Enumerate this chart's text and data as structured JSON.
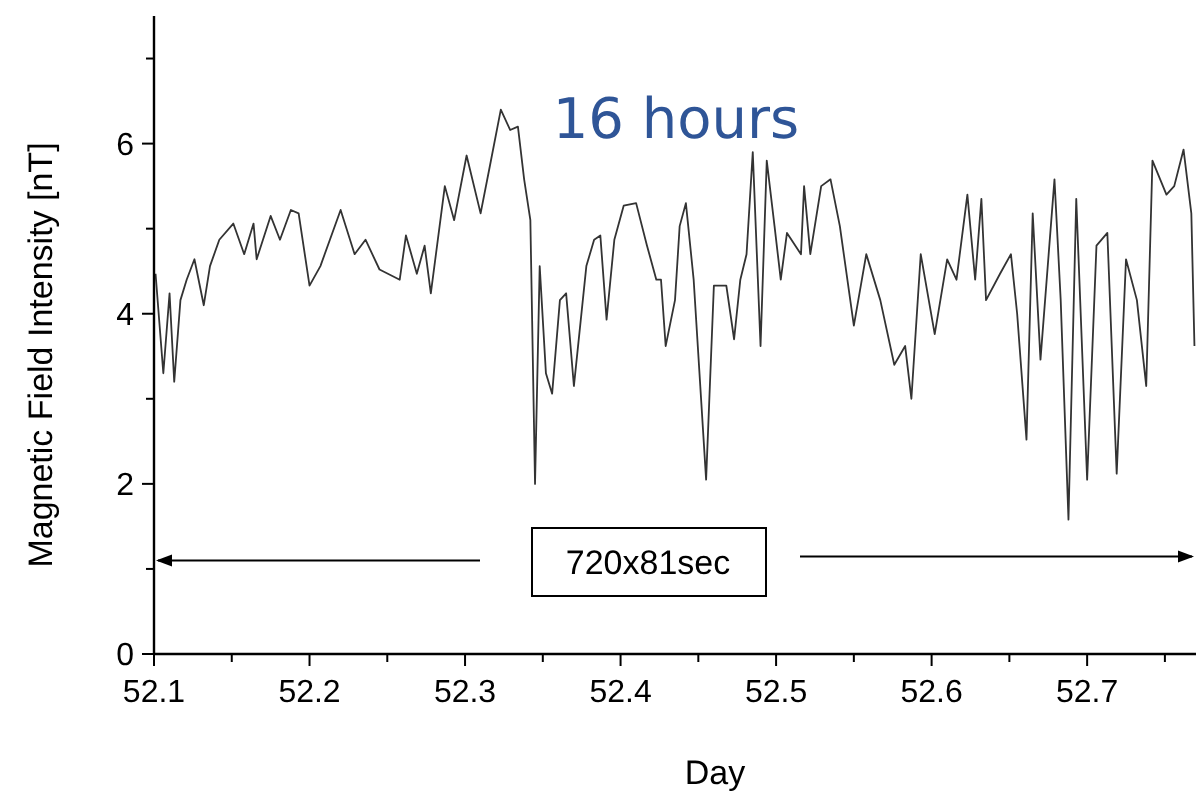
{
  "chart_data": {
    "type": "line",
    "title": "16 hours",
    "xlabel": "Day",
    "ylabel": "Magnetic Field Intensity [nT]",
    "annotations": [
      "720x81sec"
    ],
    "xlim": [
      52.1,
      52.77
    ],
    "ylim": [
      0,
      7.5
    ],
    "xticks": [
      52.1,
      {
        "value": 52.15,
        "label": null
      },
      52.2,
      {
        "value": 52.25,
        "label": null
      },
      52.3,
      {
        "value": 52.35,
        "label": null
      },
      52.4,
      {
        "value": 52.45,
        "label": null
      },
      52.5,
      {
        "value": 52.55,
        "label": null
      },
      52.6,
      {
        "value": 52.65,
        "label": null
      },
      52.7,
      {
        "value": 52.75,
        "label": null
      }
    ],
    "yticks": [
      0,
      {
        "value": 1,
        "label": null
      },
      2,
      {
        "value": 3,
        "label": null
      },
      4,
      {
        "value": 5,
        "label": null
      },
      6,
      {
        "value": 7,
        "label": null
      }
    ],
    "grid": false,
    "series": [
      {
        "color": "#333333",
        "x": [
          52.101,
          52.106,
          52.11,
          52.113,
          52.117,
          52.121,
          52.126,
          52.132,
          52.136,
          52.142,
          52.151,
          52.158,
          52.164,
          52.166,
          52.175,
          52.181,
          52.188,
          52.193,
          52.2,
          52.207,
          52.22,
          52.229,
          52.236,
          52.245,
          52.258,
          52.262,
          52.269,
          52.274,
          52.278,
          52.287,
          52.293,
          52.301,
          52.31,
          52.316,
          52.323,
          52.329,
          52.334,
          52.338,
          52.342,
          52.345,
          52.348,
          52.352,
          52.356,
          52.361,
          52.365,
          52.37,
          52.378,
          52.383,
          52.387,
          52.391,
          52.396,
          52.402,
          52.41,
          52.417,
          52.423,
          52.426,
          52.429,
          52.435,
          52.438,
          52.442,
          52.447,
          52.455,
          52.46,
          52.468,
          52.473,
          52.477,
          52.481,
          52.485,
          52.49,
          52.494,
          52.499,
          52.503,
          52.507,
          52.516,
          52.518,
          52.522,
          52.529,
          52.535,
          52.541,
          52.55,
          52.558,
          52.567,
          52.576,
          52.583,
          52.587,
          52.593,
          52.602,
          52.61,
          52.616,
          52.623,
          52.628,
          52.632,
          52.635,
          52.644,
          52.651,
          52.655,
          52.661,
          52.665,
          52.67,
          52.679,
          52.683,
          52.688,
          52.693,
          52.7,
          52.706,
          52.713,
          52.719,
          52.725,
          52.732,
          52.738,
          52.742,
          52.751,
          52.756,
          52.762,
          52.767,
          52.769
        ],
        "values": [
          4.47,
          3.3,
          4.24,
          3.2,
          4.16,
          4.4,
          4.64,
          4.1,
          4.56,
          4.87,
          5.06,
          4.7,
          5.06,
          4.64,
          5.15,
          4.87,
          5.22,
          5.18,
          4.33,
          4.56,
          5.22,
          4.7,
          4.87,
          4.52,
          4.4,
          4.92,
          4.47,
          4.8,
          4.24,
          5.5,
          5.1,
          5.86,
          5.18,
          5.74,
          6.4,
          6.16,
          6.2,
          5.58,
          5.1,
          2.0,
          4.56,
          3.3,
          3.06,
          4.16,
          4.24,
          3.15,
          4.56,
          4.87,
          4.92,
          3.93,
          4.87,
          5.27,
          5.3,
          4.8,
          4.4,
          4.4,
          3.62,
          4.16,
          5.03,
          5.3,
          4.4,
          2.05,
          4.33,
          4.33,
          3.7,
          4.4,
          4.7,
          5.9,
          3.62,
          5.8,
          5.03,
          4.4,
          4.95,
          4.7,
          5.5,
          4.7,
          5.5,
          5.58,
          5.03,
          3.86,
          4.7,
          4.16,
          3.4,
          3.62,
          3.0,
          4.7,
          3.76,
          4.64,
          4.4,
          5.4,
          4.4,
          5.35,
          4.16,
          4.47,
          4.7,
          4.0,
          2.52,
          5.18,
          3.46,
          5.58,
          4.16,
          1.58,
          5.35,
          2.05,
          4.8,
          4.95,
          2.12,
          4.64,
          4.16,
          3.15,
          5.8,
          5.4,
          5.5,
          5.93,
          5.18,
          3.62
        ]
      }
    ]
  }
}
